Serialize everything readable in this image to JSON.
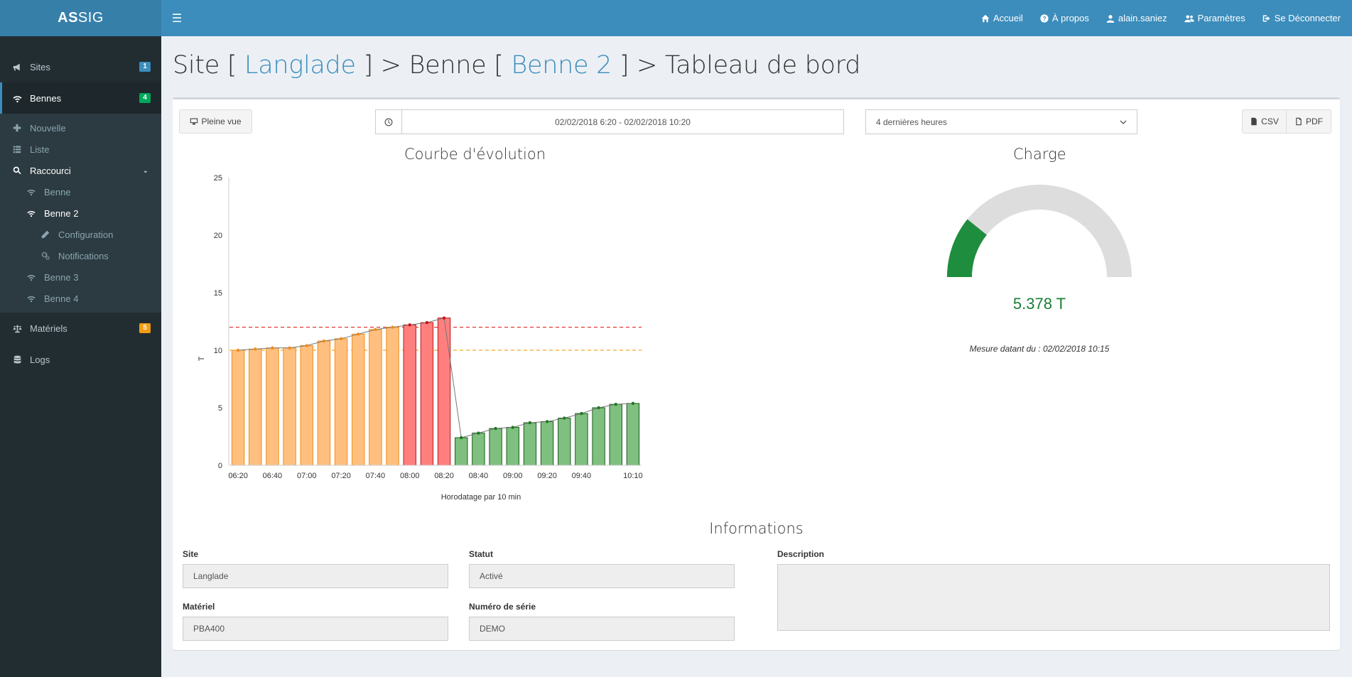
{
  "brand": {
    "prefix": "AS",
    "suffix": "SIG"
  },
  "navbar": {
    "items": [
      {
        "label": "Accueil",
        "icon": "home-icon"
      },
      {
        "label": "À propos",
        "icon": "question-circle-icon"
      },
      {
        "label": "alain.saniez",
        "icon": "user-icon"
      },
      {
        "label": "Paramètres",
        "icon": "users-icon"
      },
      {
        "label": "Se Déconnecter",
        "icon": "sign-out-icon"
      }
    ]
  },
  "sidebar": {
    "sites": {
      "label": "Sites",
      "badge": "1",
      "badge_color": "#3c8dbc"
    },
    "bennes": {
      "label": "Bennes",
      "badge": "4",
      "badge_color": "#00a65a"
    },
    "nouvelle": "Nouvelle",
    "liste": "Liste",
    "raccourci": "Raccourci",
    "benne": "Benne",
    "benne2": "Benne 2",
    "configuration": "Configuration",
    "notifications": "Notifications",
    "benne3": "Benne 3",
    "benne4": "Benne 4",
    "materiels": {
      "label": "Matériels",
      "badge": "5",
      "badge_color": "#f39c12"
    },
    "logs": "Logs"
  },
  "title": {
    "site_prefix": "Site [ ",
    "site_name": "Langlade",
    "benne_prefix": " ] > Benne [ ",
    "benne_name": "Benne 2",
    "suffix": " ] > Tableau de bord"
  },
  "toolbar": {
    "fullview": "Pleine vue",
    "daterange": "02/02/2018 6:20 - 02/02/2018 10:20",
    "period": "4 dernières heures",
    "csv": "CSV",
    "pdf": "PDF"
  },
  "chart_data": {
    "type": "bar",
    "title": "Courbe d'évolution",
    "xlabel": "Horodatage par 10 min",
    "ylabel": "T",
    "ylim": [
      0,
      25
    ],
    "yticks": [
      "0",
      "5",
      "10",
      "15",
      "20",
      "25"
    ],
    "xtick_labels": [
      "06:20",
      "06:40",
      "07:00",
      "07:20",
      "07:40",
      "08:00",
      "08:20",
      "08:40",
      "09:00",
      "09:20",
      "09:40",
      "10:10"
    ],
    "categories": [
      "06:20",
      "06:30",
      "06:40",
      "06:50",
      "07:00",
      "07:10",
      "07:20",
      "07:30",
      "07:40",
      "07:50",
      "08:00",
      "08:10",
      "08:20",
      "08:30",
      "08:40",
      "08:50",
      "09:00",
      "09:10",
      "09:20",
      "09:30",
      "09:40",
      "09:50",
      "10:00",
      "10:10"
    ],
    "values": [
      10.0,
      10.1,
      10.2,
      10.2,
      10.4,
      10.8,
      11.0,
      11.4,
      11.8,
      12.0,
      12.2,
      12.4,
      12.8,
      2.4,
      2.8,
      3.2,
      3.3,
      3.7,
      3.8,
      4.1,
      4.5,
      5.0,
      5.3,
      5.378
    ],
    "thresholds": [
      {
        "value": 12,
        "color": "#e53935"
      },
      {
        "value": 10,
        "color": "#f5a623"
      }
    ],
    "colors": {
      "orange": "#ffc07f",
      "orange_border": "#f08c1a",
      "red": "#ff7f7f",
      "red_border": "#b71c1c",
      "green": "#7fbf7f",
      "green_border": "#1b5e20"
    },
    "grid": false,
    "legend": "none"
  },
  "gauge": {
    "title": "Charge",
    "value": 5.378,
    "max": 25,
    "display": "5.378 T",
    "date_label": "Mesure datant du : 02/02/2018 10:15",
    "fill_color": "#1e8e3e",
    "track_color": "#dddddd"
  },
  "info": {
    "title": "Informations",
    "site_label": "Site",
    "site_value": "Langlade",
    "statut_label": "Statut",
    "statut_value": "Activé",
    "description_label": "Description",
    "description_value": "",
    "materiel_label": "Matériel",
    "materiel_value": "PBA400",
    "serie_label": "Numéro de série",
    "serie_value": "DEMO"
  }
}
